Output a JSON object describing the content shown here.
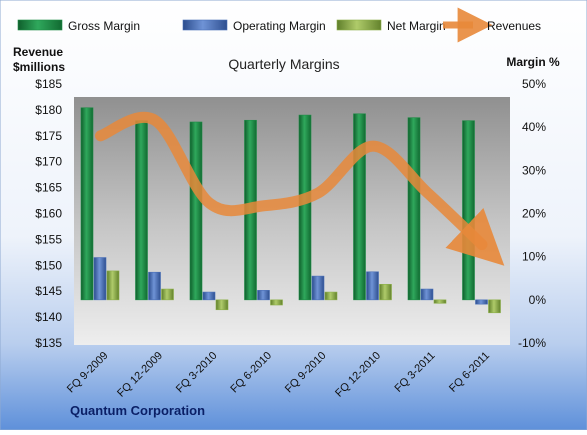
{
  "chart_data": {
    "type": "bar",
    "title": "Quarterly Margins",
    "company": "Quantum Corporation",
    "ylabel_left": "Revenue\n$millions",
    "ylabel_right": "Margin %",
    "categories": [
      "FQ 9-2009",
      "FQ 12-2009",
      "FQ 3-2010",
      "FQ 6-2010",
      "FQ 9-2010",
      "FQ 12-2010",
      "FQ 3-2011",
      "FQ 6-2011"
    ],
    "left_axis": {
      "min": 135,
      "max": 185,
      "step": 5,
      "ticks": [
        "$135",
        "$140",
        "$145",
        "$150",
        "$155",
        "$160",
        "$165",
        "$170",
        "$175",
        "$180",
        "$185"
      ]
    },
    "right_axis": {
      "min": -10,
      "max": 50,
      "step": 10,
      "ticks": [
        "-10%",
        "0%",
        "10%",
        "20%",
        "30%",
        "40%",
        "50%"
      ]
    },
    "series": [
      {
        "name": "Gross Margin",
        "type": "bar",
        "axis": "right",
        "color": "#1E8C46",
        "values": [
          44.5,
          41.5,
          41.2,
          41.6,
          42.8,
          43.1,
          42.2,
          41.5
        ]
      },
      {
        "name": "Operating Margin",
        "type": "bar",
        "axis": "right",
        "color": "#4A70B8",
        "values": [
          9.8,
          6.4,
          1.8,
          2.2,
          5.5,
          6.5,
          2.5,
          -1.0
        ]
      },
      {
        "name": "Net Margin",
        "type": "bar",
        "axis": "right",
        "color": "#8DB04A",
        "values": [
          6.7,
          2.5,
          -2.3,
          -1.2,
          1.8,
          3.6,
          -0.8,
          -3.0
        ]
      },
      {
        "name": "Revenues",
        "type": "line",
        "axis": "left",
        "color": "#E8883A",
        "values": [
          175,
          178,
          162,
          161.5,
          164,
          173,
          164,
          154
        ]
      }
    ],
    "legend_position": "top",
    "grid": false
  }
}
